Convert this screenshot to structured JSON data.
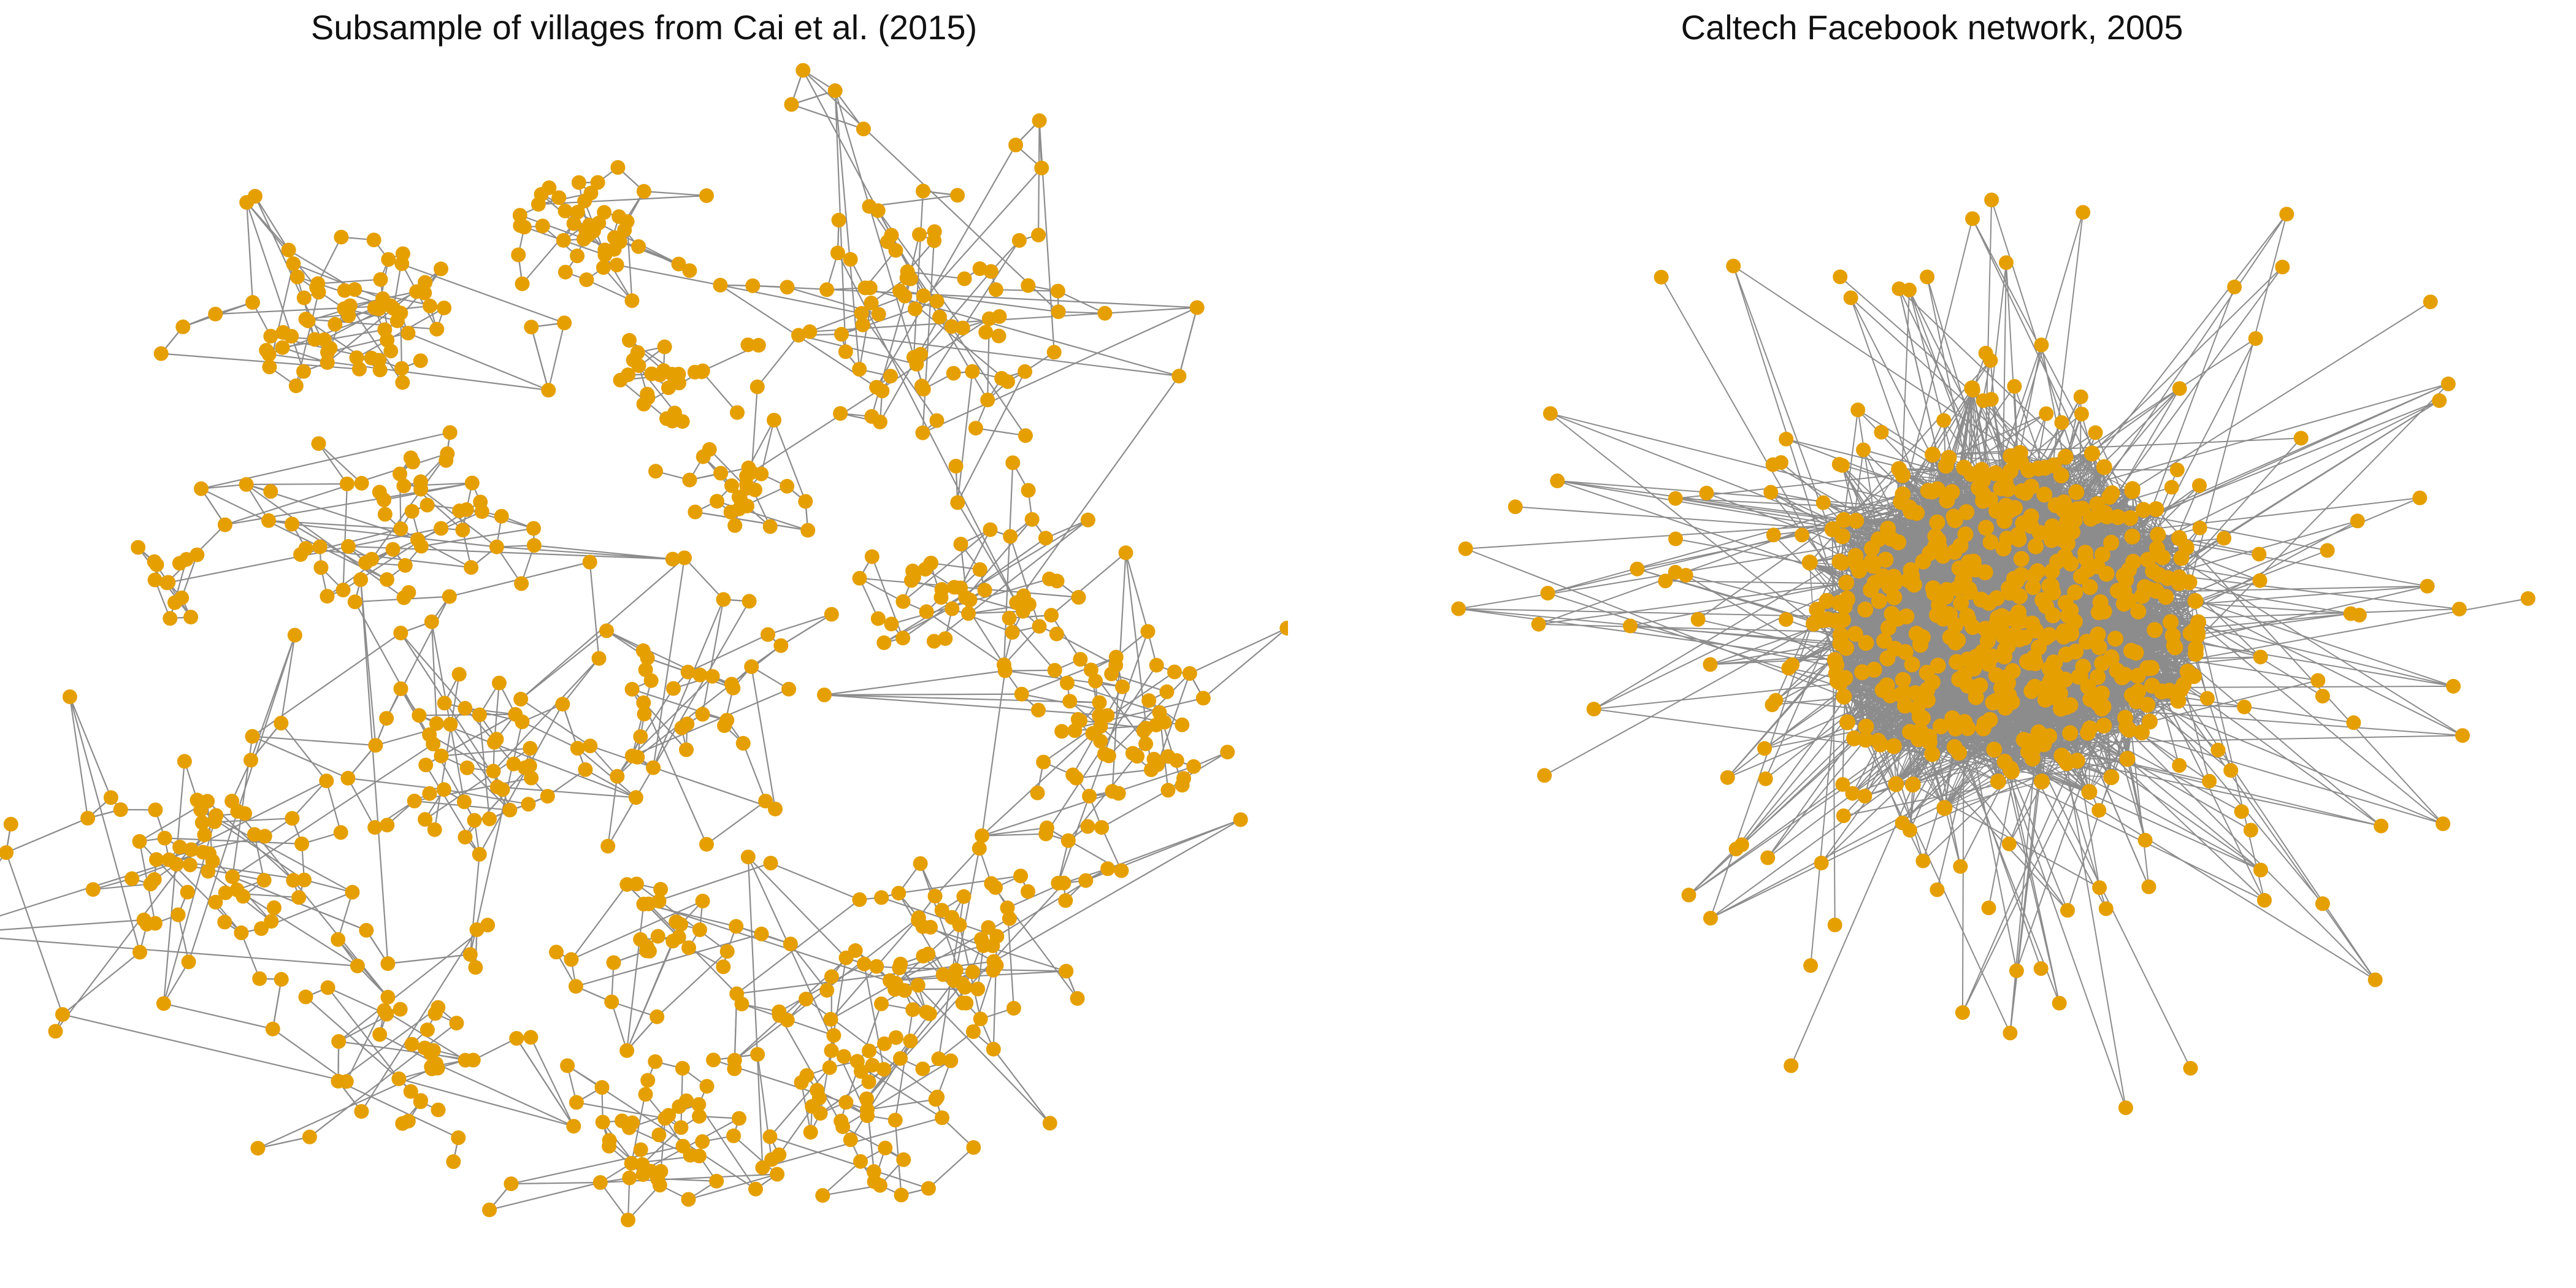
{
  "figure": {
    "left_title": "Subsample of villages from Cai et al. (2015)",
    "right_title": "Caltech Facebook network, 2005"
  },
  "style": {
    "node_color": "#E69F00",
    "edge_color": "#8C8C8C",
    "background": "#FFFFFF"
  },
  "networks": {
    "villages": {
      "component_count": 18,
      "node_count": 650
    },
    "caltech": {
      "node_count": 620
    }
  }
}
